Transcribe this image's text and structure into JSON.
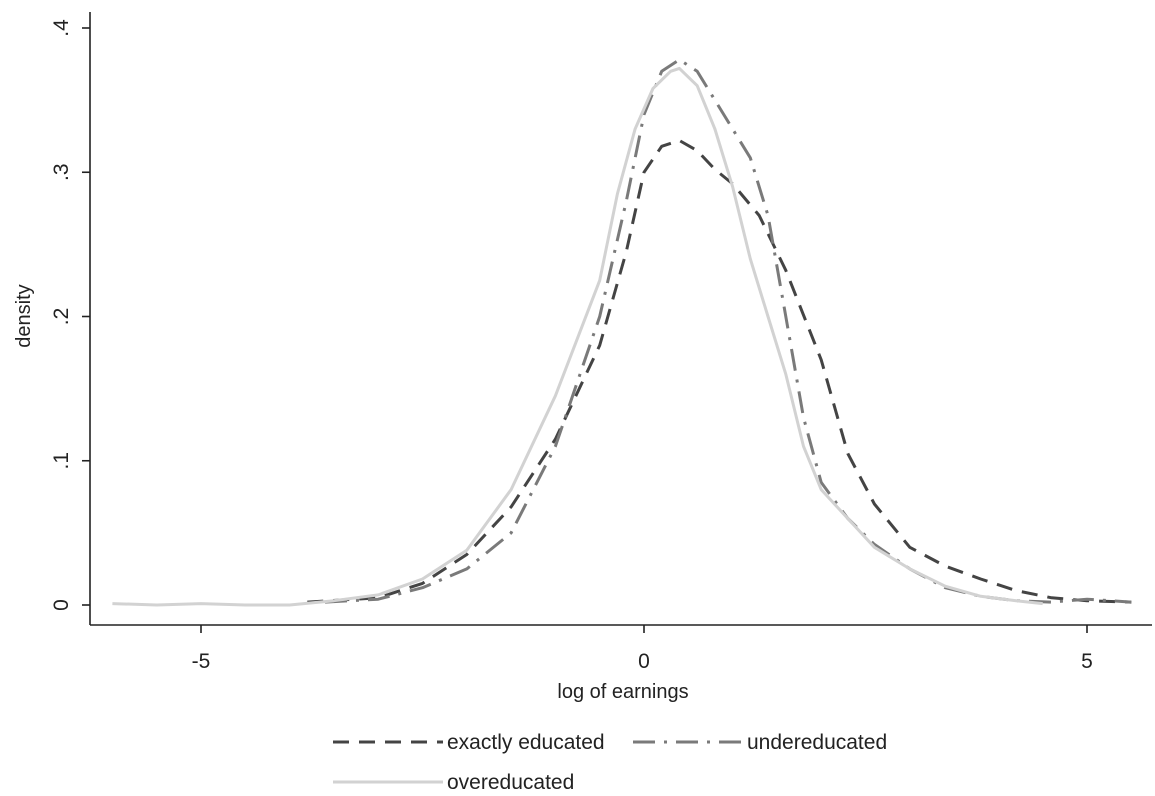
{
  "chart_data": {
    "type": "line",
    "title": "",
    "xlabel": "log of earnings",
    "ylabel": "density",
    "xlim": [
      -6.2,
      5.8
    ],
    "ylim": [
      -0.015,
      0.41
    ],
    "x_ticks": [
      -5,
      0,
      5
    ],
    "x_tick_labels": [
      "-5",
      "0",
      "5"
    ],
    "y_ticks": [
      0,
      0.1,
      0.2,
      0.3,
      0.4
    ],
    "y_tick_labels": [
      "0",
      ".1",
      ".2",
      ".3",
      ".4"
    ],
    "grid": false,
    "legend_position": "bottom",
    "series": [
      {
        "name": "exactly educated",
        "color": "#444444",
        "dash": "dashed",
        "x": [
          -3.8,
          -3.0,
          -2.5,
          -2.0,
          -1.5,
          -1.0,
          -0.5,
          -0.2,
          0.0,
          0.2,
          0.4,
          0.6,
          0.8,
          1.0,
          1.3,
          1.6,
          2.0,
          2.3,
          2.6,
          3.0,
          3.4,
          3.8,
          4.2,
          4.6,
          5.0,
          5.5
        ],
        "y": [
          0.002,
          0.005,
          0.015,
          0.035,
          0.068,
          0.115,
          0.18,
          0.245,
          0.3,
          0.318,
          0.322,
          0.315,
          0.302,
          0.292,
          0.27,
          0.232,
          0.17,
          0.105,
          0.07,
          0.04,
          0.027,
          0.018,
          0.01,
          0.005,
          0.003,
          0.002
        ]
      },
      {
        "name": "undereducated",
        "color": "#7a7a7a",
        "dash": "dash-dot",
        "x": [
          -3.6,
          -3.0,
          -2.5,
          -2.0,
          -1.5,
          -1.0,
          -0.5,
          -0.2,
          0.0,
          0.2,
          0.4,
          0.6,
          0.8,
          1.0,
          1.2,
          1.4,
          1.6,
          1.8,
          2.0,
          2.3,
          2.6,
          3.0,
          3.4,
          3.8,
          4.2,
          4.6,
          5.0,
          5.5
        ],
        "y": [
          0.002,
          0.004,
          0.012,
          0.025,
          0.05,
          0.11,
          0.2,
          0.28,
          0.34,
          0.37,
          0.378,
          0.37,
          0.35,
          0.33,
          0.31,
          0.27,
          0.2,
          0.13,
          0.085,
          0.06,
          0.042,
          0.025,
          0.012,
          0.006,
          0.003,
          0.002,
          0.004,
          0.002
        ]
      },
      {
        "name": "overeducated",
        "color": "#d2d2d2",
        "dash": "solid",
        "x": [
          -6.0,
          -5.5,
          -5.0,
          -4.5,
          -4.0,
          -3.5,
          -3.0,
          -2.5,
          -2.0,
          -1.5,
          -1.0,
          -0.5,
          -0.3,
          -0.1,
          0.1,
          0.3,
          0.4,
          0.6,
          0.8,
          1.0,
          1.2,
          1.4,
          1.6,
          1.8,
          2.0,
          2.3,
          2.6,
          3.0,
          3.4,
          3.8,
          4.2,
          4.5
        ],
        "y": [
          0.001,
          0.0,
          0.001,
          0.0,
          0.0,
          0.003,
          0.007,
          0.018,
          0.038,
          0.08,
          0.145,
          0.225,
          0.285,
          0.33,
          0.358,
          0.37,
          0.372,
          0.36,
          0.33,
          0.29,
          0.24,
          0.2,
          0.16,
          0.11,
          0.08,
          0.06,
          0.04,
          0.025,
          0.013,
          0.006,
          0.003,
          0.001
        ]
      }
    ]
  }
}
